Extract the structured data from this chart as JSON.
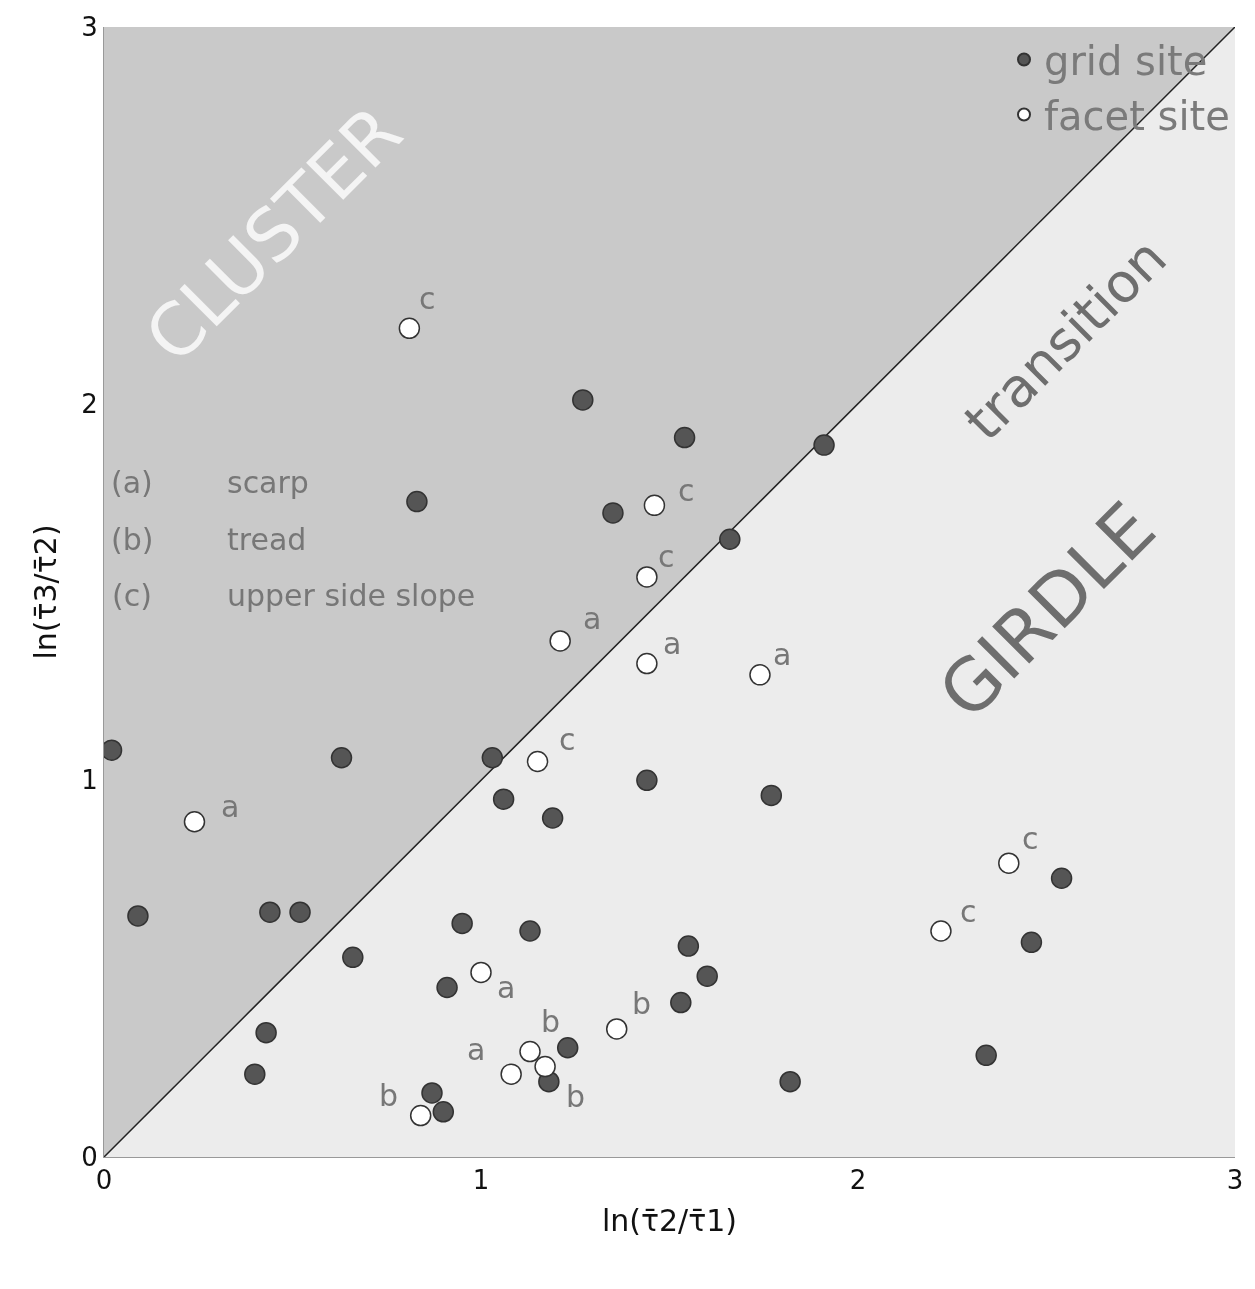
{
  "chart_data": {
    "type": "scatter",
    "xlabel": "ln(τ̄2/τ̄1)",
    "ylabel": "ln(τ̄3/τ̄2)",
    "xlim": [
      0,
      3
    ],
    "ylim": [
      0,
      3
    ],
    "xticks": [
      0,
      1,
      2,
      3
    ],
    "yticks": [
      0,
      1,
      2,
      3
    ],
    "grid": false,
    "legend": "top right",
    "marker": "circle",
    "series": [
      {
        "type": "area",
        "color": "#ececec",
        "x": [
          0,
          3
        ],
        "values": [
          0,
          3
        ],
        "marker": "none"
      },
      {
        "name": "grid site",
        "color": "#555555",
        "x": [
          0.02,
          0.09,
          0.44,
          0.52,
          0.63,
          0.66,
          0.43,
          0.4,
          0.83,
          1.27,
          1.54,
          1.35,
          1.66,
          1.91,
          1.03,
          1.06,
          1.19,
          1.44,
          1.77,
          0.95,
          1.13,
          0.91,
          1.55,
          1.6,
          1.53,
          1.23,
          1.18,
          0.87,
          0.9,
          1.82,
          2.34,
          2.46,
          2.54
        ],
        "values": [
          1.08,
          0.64,
          0.65,
          0.65,
          1.06,
          0.53,
          0.33,
          0.22,
          1.74,
          2.01,
          1.91,
          1.71,
          1.64,
          1.89,
          1.06,
          0.95,
          0.9,
          1.0,
          0.96,
          0.62,
          0.6,
          0.45,
          0.56,
          0.48,
          0.41,
          0.29,
          0.2,
          0.17,
          0.12,
          0.2,
          0.27,
          0.57,
          0.74
        ]
      },
      {
        "name": "facet site",
        "color": "#ffffff",
        "x": [
          0.81,
          1.46,
          1.44,
          1.21,
          1.44,
          1.74,
          1.15,
          0.24,
          1.0,
          1.36,
          1.13,
          1.17,
          1.08,
          0.84,
          2.22,
          2.4
        ],
        "values": [
          2.2,
          1.73,
          1.54,
          1.37,
          1.31,
          1.28,
          1.05,
          0.89,
          0.49,
          0.34,
          0.28,
          0.24,
          0.22,
          0.11,
          0.6,
          0.78
        ]
      }
    ],
    "annotations": [
      "CLUSTER",
      "transition",
      "GIRDLE",
      "(a)",
      "scarp",
      "(b)",
      "tread",
      "(c)",
      "upper side slope",
      {
        "text": "c",
        "x": 0.81,
        "y": 2.2
      },
      {
        "text": "c",
        "x": 1.46,
        "y": 1.73
      },
      {
        "text": "c",
        "x": 1.44,
        "y": 1.54
      },
      {
        "text": "a",
        "x": 1.21,
        "y": 1.37
      },
      {
        "text": "a",
        "x": 1.44,
        "y": 1.31
      },
      {
        "text": "a",
        "x": 1.74,
        "y": 1.28
      },
      {
        "text": "c",
        "x": 1.15,
        "y": 1.05
      },
      {
        "text": "a",
        "x": 0.24,
        "y": 0.89
      },
      {
        "text": "a",
        "x": 1.0,
        "y": 0.49
      },
      {
        "text": "b",
        "x": 1.36,
        "y": 0.34
      },
      {
        "text": "b",
        "x": 1.13,
        "y": 0.28
      },
      {
        "text": "b",
        "x": 1.17,
        "y": 0.24
      },
      {
        "text": "a",
        "x": 1.08,
        "y": 0.22
      },
      {
        "text": "b",
        "x": 0.84,
        "y": 0.11
      },
      {
        "text": "c",
        "x": 2.22,
        "y": 0.6
      },
      {
        "text": "c",
        "x": 2.4,
        "y": 0.78
      }
    ]
  }
}
